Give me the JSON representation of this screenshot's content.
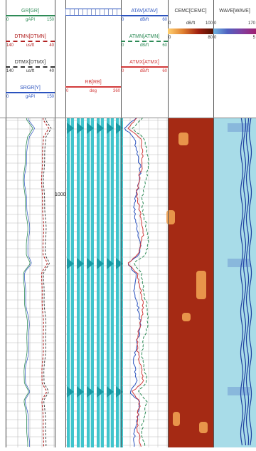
{
  "tracks": {
    "gr": {
      "headers": [
        {
          "mnemonic": "GR[GR]",
          "color": "#2e8b57",
          "lo": "0",
          "unit": "gAPI",
          "hi": "150",
          "dash": false
        },
        {
          "mnemonic": "DTMN[DTMN]",
          "color": "#b22222",
          "lo": "140",
          "unit": "us/ft",
          "hi": "40",
          "dash": true
        },
        {
          "mnemonic": "DTMX[DTMX]",
          "color": "#333333",
          "lo": "140",
          "unit": "us/ft",
          "hi": "40",
          "dash": true
        },
        {
          "mnemonic": "SRGR[Y]",
          "color": "#2a52be",
          "lo": "0",
          "unit": "gAPI",
          "hi": "150",
          "dash": false
        }
      ]
    },
    "depth": {
      "label": "1000"
    },
    "rb": {
      "headers": [
        {
          "mnemonic": "RB[RB]",
          "color": "#d23b3b",
          "lo": "0",
          "unit": "deg",
          "hi": "360",
          "dash": false
        }
      ]
    },
    "atr": {
      "headers": [
        {
          "mnemonic": "ATAV[ATAV]",
          "color": "#2a52be",
          "lo": "0",
          "unit": "dB/ft",
          "hi": "60",
          "dash": false
        },
        {
          "mnemonic": "ATMN[ATMN]",
          "color": "#2e8b57",
          "lo": "0",
          "unit": "dB/ft",
          "hi": "60",
          "dash": true
        },
        {
          "mnemonic": "ATMX[ATMX]",
          "color": "#d23b3b",
          "lo": "0",
          "unit": "dB/ft",
          "hi": "60",
          "dash": false
        }
      ]
    },
    "cemc": {
      "header": {
        "mnemonic": "CEMC[CEMC]",
        "color": "#333333",
        "lo": "0",
        "unit": "dB/ft",
        "hi": "100",
        "lo2": "0",
        "hi2": "80"
      }
    },
    "wave": {
      "header": {
        "mnemonic": "WAVE[WAVE]",
        "color": "#333333",
        "lo": "0",
        "hi": "170",
        "lo2": "0",
        "hi2": "5"
      }
    }
  },
  "colors": {
    "cemc_bg": "#a52a14",
    "cemc_hot": "#f0a050",
    "wave_bg": "#a8dce8",
    "wave_ridge": "#1f3fa0",
    "cyan_fill": "#40c4cc"
  }
}
